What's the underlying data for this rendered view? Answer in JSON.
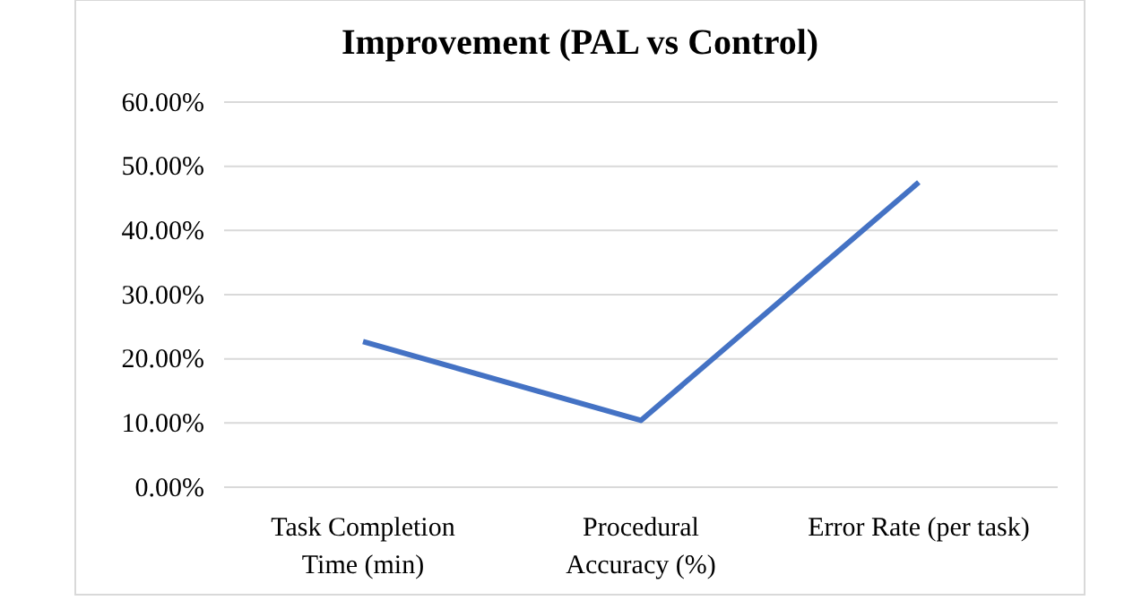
{
  "chart_data": {
    "type": "line",
    "title": "Improvement (PAL vs Control)",
    "categories": [
      [
        "Task Completion",
        "Time (min)"
      ],
      [
        "Procedural",
        "Accuracy (%)"
      ],
      [
        "Error Rate (per task)"
      ]
    ],
    "series": [
      {
        "color": "#4472c4",
        "values": [
          22.7,
          10.4,
          47.5
        ]
      }
    ],
    "ylim": [
      0,
      60
    ],
    "yticks": [
      {
        "value": 0,
        "label": "0.00%"
      },
      {
        "value": 10,
        "label": "10.00%"
      },
      {
        "value": 20,
        "label": "20.00%"
      },
      {
        "value": 30,
        "label": "30.00%"
      },
      {
        "value": 40,
        "label": "40.00%"
      },
      {
        "value": 50,
        "label": "50.00%"
      },
      {
        "value": 60,
        "label": "60.00%"
      }
    ],
    "grid": "y",
    "marker": "none",
    "line_style": "solid"
  }
}
